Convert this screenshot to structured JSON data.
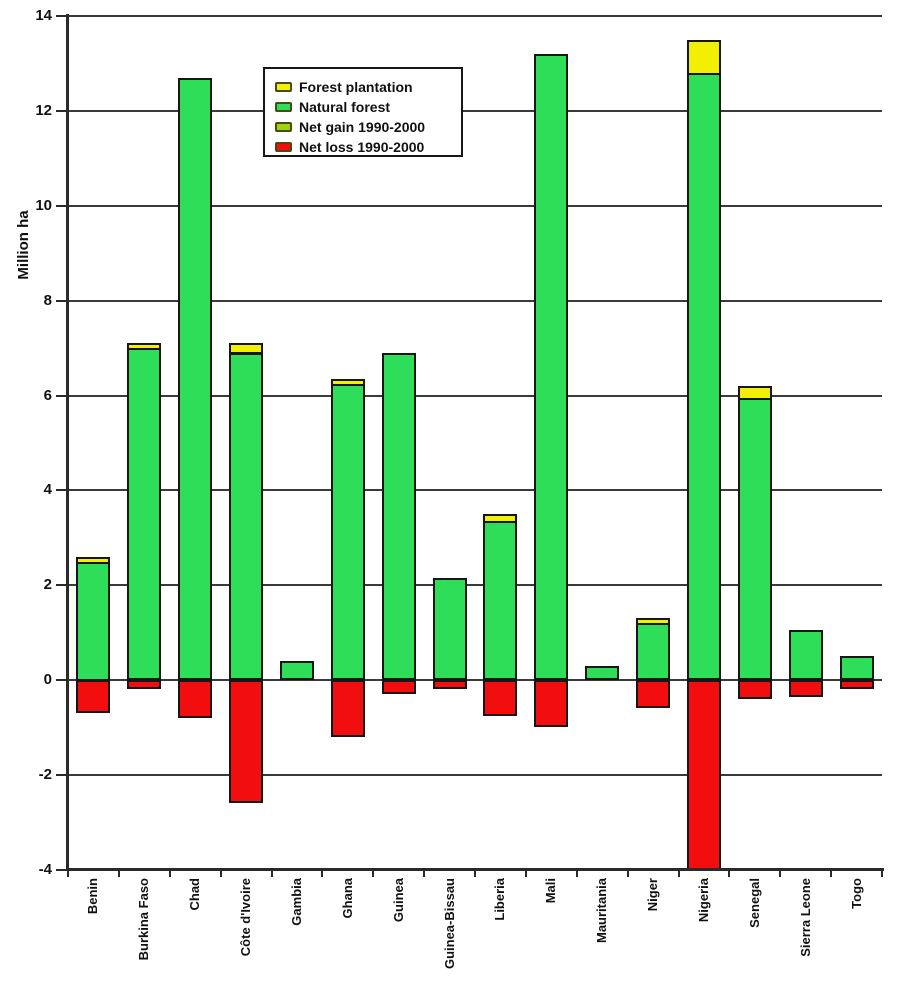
{
  "chart_data": {
    "type": "bar",
    "stacked": true,
    "title": "",
    "ylabel": "Million ha",
    "ylim": [
      -4,
      14
    ],
    "yticks": [
      14,
      12,
      10,
      8,
      6,
      4,
      2,
      0,
      -2,
      -4
    ],
    "grid": true,
    "legend_position": "inside-top-center",
    "categories": [
      "Benin",
      "Burkina Faso",
      "Chad",
      "Côte d'Ivoire",
      "Gambia",
      "Ghana",
      "Guinea",
      "Guinea-Bissau",
      "Liberia",
      "Mali",
      "Mauritania",
      "Niger",
      "Nigeria",
      "Senegal",
      "Sierra Leone",
      "Togo"
    ],
    "series": [
      {
        "name": "Forest plantation",
        "color": "#F2F000",
        "values": [
          0.1,
          0.1,
          0,
          0.2,
          0,
          0.1,
          0,
          0,
          0.15,
          0,
          0,
          0.1,
          0.7,
          0.25,
          0,
          0
        ]
      },
      {
        "name": "Natural forest",
        "color": "#2FDE58",
        "values": [
          2.5,
          7.0,
          12.7,
          6.9,
          0.4,
          6.25,
          6.9,
          2.15,
          3.35,
          13.2,
          0.3,
          1.2,
          12.8,
          5.95,
          1.05,
          0.5
        ]
      },
      {
        "name": "Net gain 1990-2000",
        "color": "#9FD408",
        "values": [
          0,
          0,
          0,
          0,
          0,
          0,
          0,
          0,
          0,
          0,
          0,
          0,
          0,
          0,
          0,
          0
        ]
      },
      {
        "name": "Net loss 1990-2000",
        "color": "#F20E0E",
        "values": [
          -0.7,
          -0.2,
          -0.8,
          -2.6,
          0,
          -1.2,
          -0.3,
          -0.2,
          -0.75,
          -1.0,
          0,
          -0.6,
          -4.0,
          -0.4,
          -0.35,
          -0.2
        ]
      }
    ]
  }
}
